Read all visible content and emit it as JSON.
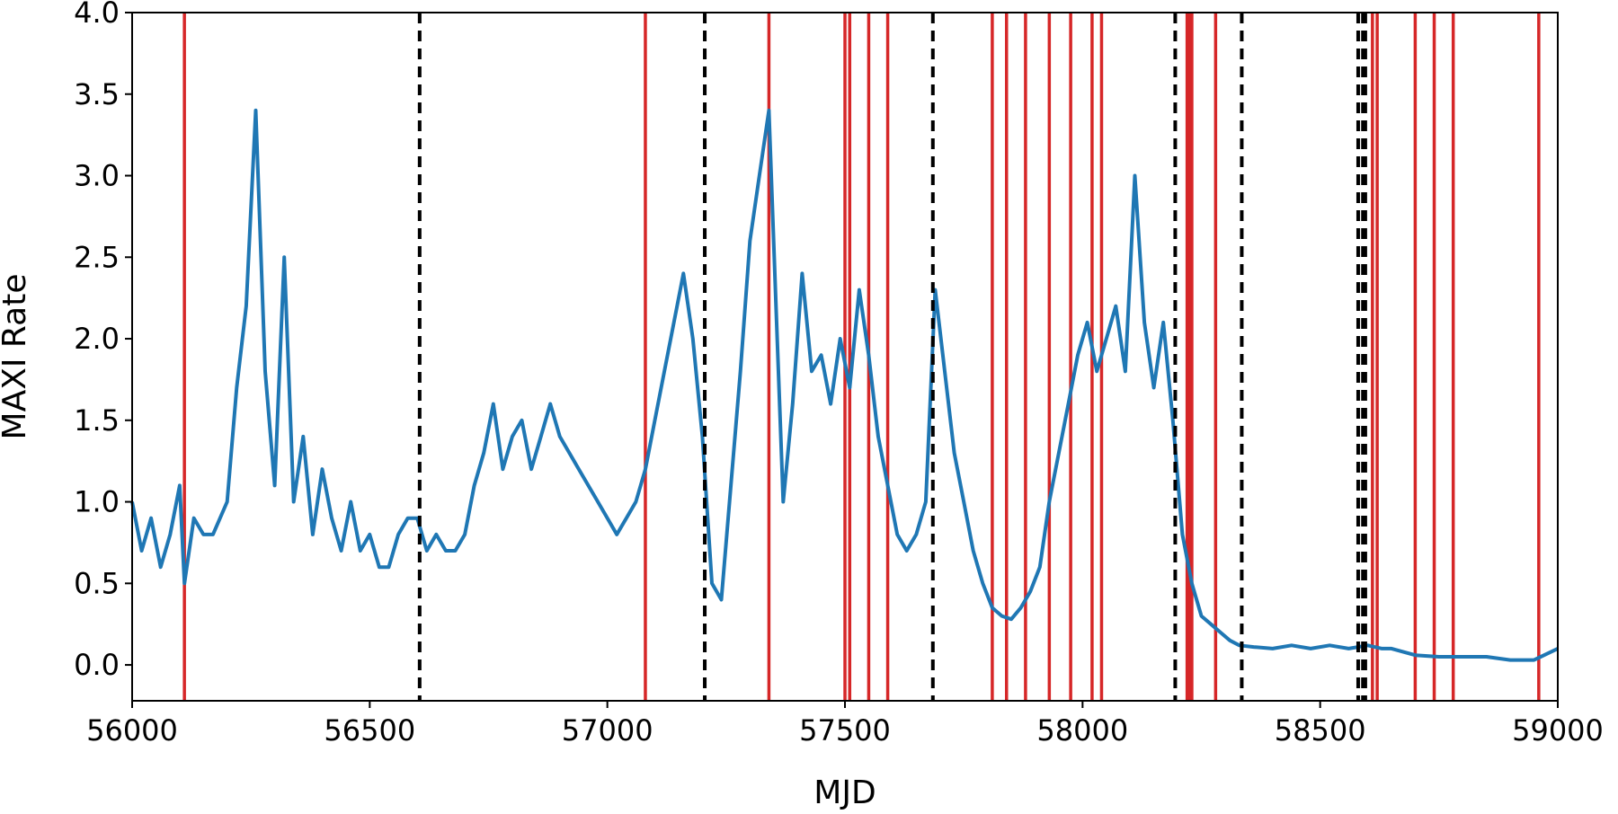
{
  "chart_data": {
    "type": "line",
    "title": "",
    "xlabel": "MJD",
    "ylabel": "MAXI Rate",
    "xlim": [
      56000,
      59000
    ],
    "ylim": [
      -0.22,
      4.0
    ],
    "xticks": [
      56000,
      56500,
      57000,
      57500,
      58000,
      58500,
      59000
    ],
    "xtick_labels": [
      "56000",
      "56500",
      "57000",
      "57500",
      "58000",
      "58500",
      "59000"
    ],
    "yticks": [
      0.0,
      0.5,
      1.0,
      1.5,
      2.0,
      2.5,
      3.0,
      3.5,
      4.0
    ],
    "ytick_labels": [
      "0.0",
      "0.5",
      "1.0",
      "1.5",
      "2.0",
      "2.5",
      "3.0",
      "3.5",
      "4.0"
    ],
    "grid": false,
    "legend": "none",
    "colors": {
      "series": "#1f77b4",
      "red_lines": "#d62728",
      "black_lines": "#000000"
    },
    "series": [
      {
        "values_x": [
          56000,
          56020,
          56040,
          56060,
          56080,
          56100,
          56110,
          56130,
          56150,
          56170,
          56200,
          56220,
          56240,
          56260,
          56280,
          56300,
          56320,
          56340,
          56360,
          56380,
          56400,
          56420,
          56440,
          56460,
          56480,
          56500,
          56520,
          56540,
          56560,
          56580,
          56600,
          56620,
          56640,
          56660,
          56680,
          56700,
          56720,
          56740,
          56760,
          56780,
          56800,
          56820,
          56840,
          56860,
          56880,
          56900,
          56920,
          56940,
          56960,
          56980,
          57000,
          57020,
          57040,
          57060,
          57080,
          57100,
          57120,
          57140,
          57160,
          57180,
          57200,
          57220,
          57240,
          57260,
          57280,
          57300,
          57320,
          57340,
          57355,
          57370,
          57390,
          57410,
          57430,
          57450,
          57470,
          57490,
          57510,
          57530,
          57550,
          57570,
          57590,
          57610,
          57630,
          57650,
          57670,
          57690,
          57710,
          57730,
          57750,
          57770,
          57790,
          57810,
          57830,
          57850,
          57870,
          57890,
          57910,
          57930,
          57950,
          57970,
          57990,
          58010,
          58030,
          58050,
          58070,
          58090,
          58110,
          58130,
          58150,
          58170,
          58190,
          58210,
          58230,
          58250,
          58270,
          58290,
          58310,
          58330,
          58360,
          58400,
          58440,
          58480,
          58520,
          58560,
          58600,
          58630,
          58650,
          58700,
          58750,
          58800,
          58850,
          58900,
          58950,
          59000
        ],
        "values": [
          1.0,
          0.7,
          0.9,
          0.6,
          0.8,
          1.1,
          0.5,
          0.9,
          0.8,
          0.8,
          1.0,
          1.7,
          2.2,
          3.4,
          1.8,
          1.1,
          2.5,
          1.0,
          1.4,
          0.8,
          1.2,
          0.9,
          0.7,
          1.0,
          0.7,
          0.8,
          0.6,
          0.6,
          0.8,
          0.9,
          0.9,
          0.7,
          0.8,
          0.7,
          0.7,
          0.8,
          1.1,
          1.3,
          1.6,
          1.2,
          1.4,
          1.5,
          1.2,
          1.4,
          1.6,
          1.4,
          1.3,
          1.2,
          1.1,
          1.0,
          0.9,
          0.8,
          0.9,
          1.0,
          1.2,
          1.5,
          1.8,
          2.1,
          2.4,
          2.0,
          1.4,
          0.5,
          0.4,
          1.1,
          1.8,
          2.6,
          3.0,
          3.4,
          2.2,
          1.0,
          1.6,
          2.4,
          1.8,
          1.9,
          1.6,
          2.0,
          1.7,
          2.3,
          1.9,
          1.4,
          1.1,
          0.8,
          0.7,
          0.8,
          1.0,
          2.3,
          1.8,
          1.3,
          1.0,
          0.7,
          0.5,
          0.35,
          0.3,
          0.28,
          0.35,
          0.45,
          0.6,
          1.0,
          1.3,
          1.6,
          1.9,
          2.1,
          1.8,
          2.0,
          2.2,
          1.8,
          3.0,
          2.1,
          1.7,
          2.1,
          1.5,
          0.8,
          0.5,
          0.3,
          0.25,
          0.2,
          0.15,
          0.12,
          0.11,
          0.1,
          0.12,
          0.1,
          0.12,
          0.1,
          0.12,
          0.1,
          0.1,
          0.06,
          0.05,
          0.05,
          0.05,
          0.03,
          0.03,
          0.1
        ]
      }
    ],
    "vlines_red": [
      56110,
      57080,
      57340,
      57500,
      57510,
      57550,
      57590,
      57810,
      57840,
      57880,
      57930,
      57975,
      58020,
      58040,
      58220,
      58225,
      58230,
      58280,
      58610,
      58620,
      58700,
      58740,
      58780,
      58960
    ],
    "vlines_black_dashed": [
      56605,
      57205,
      57685,
      58195,
      58335,
      58580,
      58590,
      58595
    ]
  }
}
